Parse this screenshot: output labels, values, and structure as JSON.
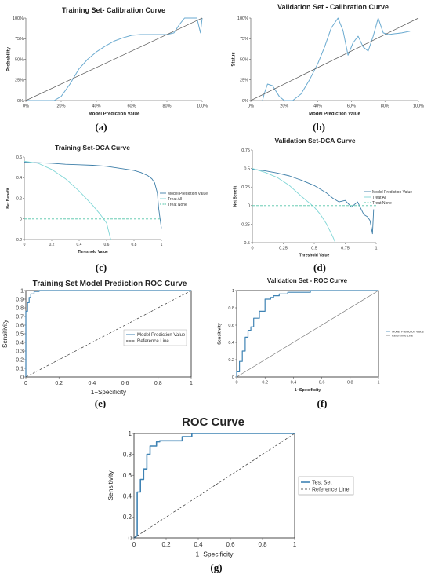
{
  "colors": {
    "model": "#6aaad0",
    "dark_model": "#3d7ea8",
    "treat_all": "#7fd6d6",
    "treat_none": "#52c4a8",
    "reference": "#555555",
    "roc": "#3f83b4",
    "outline": "#7a9fc4"
  },
  "chart_data": [
    {
      "id": "a",
      "type": "line",
      "caption": "(a)",
      "title": "Training Set- Calibration Curve",
      "xlabel": "Model Prediction Value",
      "ylabel": "Probability",
      "xlim": [
        0,
        1
      ],
      "ylim": [
        0,
        1
      ],
      "xticks": [
        "0%",
        "20%",
        "40%",
        "60%",
        "80%",
        "100%"
      ],
      "yticks": [
        "0%",
        "25%",
        "50%",
        "75%",
        "100%"
      ],
      "series": [
        {
          "role": "model",
          "x": [
            0.0,
            0.1,
            0.16,
            0.2,
            0.25,
            0.3,
            0.35,
            0.4,
            0.45,
            0.5,
            0.55,
            0.6,
            0.65,
            0.7,
            0.75,
            0.8,
            0.84,
            0.87,
            0.9,
            0.94,
            0.97,
            0.99,
            1.0
          ],
          "y": [
            0.0,
            0.0,
            0.0,
            0.05,
            0.2,
            0.38,
            0.5,
            0.59,
            0.66,
            0.72,
            0.76,
            0.79,
            0.8,
            0.8,
            0.8,
            0.8,
            0.82,
            0.92,
            1.0,
            1.0,
            1.0,
            0.82,
            1.0
          ]
        },
        {
          "role": "reference",
          "x": [
            0,
            1
          ],
          "y": [
            0,
            1
          ]
        }
      ]
    },
    {
      "id": "b",
      "type": "line",
      "caption": "(b)",
      "title": "Validation Set - Calibration Curve",
      "xlabel": "Model Prediction Value",
      "ylabel": "Status",
      "xlim": [
        0,
        1
      ],
      "ylim": [
        0,
        1
      ],
      "xticks": [
        "0%",
        "20%",
        "40%",
        "60%",
        "80%",
        "100%"
      ],
      "yticks": [
        "0%",
        "25%",
        "50%",
        "75%",
        "100%"
      ],
      "series": [
        {
          "role": "model",
          "x": [
            0.07,
            0.08,
            0.1,
            0.13,
            0.17,
            0.2,
            0.25,
            0.3,
            0.35,
            0.4,
            0.44,
            0.48,
            0.52,
            0.55,
            0.58,
            0.61,
            0.64,
            0.67,
            0.7,
            0.73,
            0.76,
            0.79,
            0.82,
            0.86,
            0.9,
            0.95
          ],
          "y": [
            0.0,
            0.08,
            0.2,
            0.18,
            0.05,
            0.0,
            0.0,
            0.08,
            0.25,
            0.45,
            0.65,
            0.88,
            1.0,
            0.85,
            0.55,
            0.7,
            0.78,
            0.65,
            0.6,
            0.78,
            1.0,
            0.82,
            0.8,
            0.81,
            0.82,
            0.84
          ]
        },
        {
          "role": "reference",
          "x": [
            0,
            1
          ],
          "y": [
            0,
            1
          ]
        }
      ]
    },
    {
      "id": "c",
      "type": "line",
      "caption": "(c)",
      "title": "Training Set-DCA Curve",
      "xlabel": "Threshold Value",
      "ylabel": "Net Benefit",
      "xlim": [
        0,
        1
      ],
      "ylim": [
        -0.2,
        0.6
      ],
      "xticks": [
        "0",
        "0.2",
        "0.4",
        "0.6",
        "0.8",
        "1"
      ],
      "xtick_values": [
        0,
        0.2,
        0.4,
        0.6,
        0.8,
        1
      ],
      "yticks": [
        "-0.2",
        "0",
        "0.2",
        "0.4",
        "0.6"
      ],
      "ytick_values": [
        -0.2,
        0,
        0.2,
        0.4,
        0.6
      ],
      "legend": [
        "Model Prediction Value",
        "Treat All",
        "Treat None"
      ],
      "series": [
        {
          "role": "model",
          "name": "Model Prediction Value",
          "x": [
            0.0,
            0.1,
            0.2,
            0.3,
            0.4,
            0.5,
            0.6,
            0.7,
            0.8,
            0.85,
            0.9,
            0.93,
            0.95,
            0.97,
            0.98,
            0.99,
            1.0
          ],
          "y": [
            0.55,
            0.545,
            0.54,
            0.53,
            0.525,
            0.52,
            0.51,
            0.49,
            0.47,
            0.45,
            0.42,
            0.39,
            0.35,
            0.25,
            0.1,
            0.0,
            -0.09
          ]
        },
        {
          "role": "treat_all",
          "name": "Treat All",
          "x": [
            0.0,
            0.1,
            0.2,
            0.3,
            0.4,
            0.5,
            0.55,
            0.6,
            0.63
          ],
          "y": [
            0.56,
            0.54,
            0.48,
            0.39,
            0.27,
            0.13,
            0.05,
            -0.04,
            -0.2
          ]
        },
        {
          "role": "treat_none",
          "name": "Treat None",
          "x": [
            0,
            1
          ],
          "y": [
            0,
            0
          ]
        }
      ]
    },
    {
      "id": "d",
      "type": "line",
      "caption": "(d)",
      "title": "Validation Set-DCA Curve",
      "xlabel": "Threshold Value",
      "ylabel": "Net Benefit",
      "xlim": [
        0,
        1
      ],
      "ylim": [
        -0.5,
        0.75
      ],
      "xticks": [
        "0",
        "0.25",
        "0.5",
        "0.75",
        "1"
      ],
      "xtick_values": [
        0,
        0.25,
        0.5,
        0.75,
        1
      ],
      "yticks": [
        "-0.5",
        "-0.25",
        "0",
        "0.25",
        "0.5",
        "0.75"
      ],
      "ytick_values": [
        -0.5,
        -0.25,
        0,
        0.25,
        0.5,
        0.75
      ],
      "legend": [
        "Model Prediction Value",
        "Treat All",
        "Treat None"
      ],
      "series": [
        {
          "role": "model",
          "name": "Model Prediction Value",
          "x": [
            0.0,
            0.1,
            0.2,
            0.3,
            0.4,
            0.5,
            0.55,
            0.6,
            0.65,
            0.7,
            0.75,
            0.8,
            0.85,
            0.9,
            0.93,
            0.95,
            0.97,
            0.98
          ],
          "y": [
            0.49,
            0.47,
            0.44,
            0.4,
            0.34,
            0.27,
            0.22,
            0.17,
            0.1,
            0.05,
            0.07,
            -0.02,
            0.05,
            -0.12,
            -0.15,
            -0.2,
            -0.38,
            -0.05
          ]
        },
        {
          "role": "treat_all",
          "name": "Treat All",
          "x": [
            0.0,
            0.1,
            0.2,
            0.3,
            0.4,
            0.5,
            0.55,
            0.6,
            0.65,
            0.67
          ],
          "y": [
            0.5,
            0.45,
            0.38,
            0.27,
            0.12,
            -0.02,
            -0.12,
            -0.25,
            -0.42,
            -0.5
          ]
        },
        {
          "role": "treat_none",
          "name": "Treat None",
          "x": [
            0,
            1
          ],
          "y": [
            0,
            0
          ]
        }
      ]
    },
    {
      "id": "e",
      "type": "line",
      "caption": "(e)",
      "title": "Training Set Model Prediction ROC Curve",
      "xlabel": "1−Specificity",
      "ylabel": "Sensitivity",
      "xlim": [
        0,
        1
      ],
      "ylim": [
        0,
        1
      ],
      "xticks": [
        "0",
        "0.2",
        "0.4",
        "0.6",
        "0.8",
        "1"
      ],
      "xtick_values": [
        0,
        0.2,
        0.4,
        0.6,
        0.8,
        1
      ],
      "yticks": [
        "0",
        "0.1",
        "0.2",
        "0.3",
        "0.4",
        "0.5",
        "0.6",
        "0.7",
        "0.8",
        "0.9",
        "1"
      ],
      "ytick_values": [
        0,
        0.1,
        0.2,
        0.3,
        0.4,
        0.5,
        0.6,
        0.7,
        0.8,
        0.9,
        1
      ],
      "legend": [
        "Model Prediction Value",
        "Reference Line"
      ],
      "series": [
        {
          "role": "roc",
          "name": "Model Prediction Value",
          "x": [
            0,
            0,
            0.01,
            0.01,
            0.02,
            0.02,
            0.03,
            0.03,
            0.05,
            0.05,
            0.08,
            0.08,
            1
          ],
          "y": [
            0,
            0.76,
            0.76,
            0.86,
            0.86,
            0.92,
            0.92,
            0.96,
            0.96,
            0.99,
            0.99,
            1,
            1
          ]
        },
        {
          "role": "reference",
          "name": "Reference Line",
          "x": [
            0,
            1
          ],
          "y": [
            0,
            1
          ]
        }
      ]
    },
    {
      "id": "f",
      "type": "line",
      "caption": "(f)",
      "title": "Validation Set - ROC Curve",
      "xlabel": "1−Specificity",
      "ylabel": "Sensitivity",
      "xlim": [
        0,
        1
      ],
      "ylim": [
        0,
        1
      ],
      "xticks": [
        "0",
        "0.2",
        "0.4",
        "0.6",
        "0.8",
        "1"
      ],
      "xtick_values": [
        0,
        0.2,
        0.4,
        0.6,
        0.8,
        1
      ],
      "yticks": [
        "0",
        "0.2",
        "0.4",
        "0.6",
        "0.8",
        "1"
      ],
      "ytick_values": [
        0,
        0.2,
        0.4,
        0.6,
        0.8,
        1
      ],
      "legend": [
        "Model Prediction Value",
        "Reference Line"
      ],
      "series": [
        {
          "role": "roc",
          "name": "Model Prediction Value",
          "x": [
            0,
            0,
            0.02,
            0.02,
            0.04,
            0.04,
            0.06,
            0.06,
            0.08,
            0.08,
            0.1,
            0.1,
            0.12,
            0.12,
            0.16,
            0.16,
            0.2,
            0.2,
            0.24,
            0.24,
            0.26,
            0.26,
            0.3,
            0.3,
            0.36,
            0.36,
            0.52,
            0.52,
            1
          ],
          "y": [
            0,
            0.06,
            0.06,
            0.18,
            0.18,
            0.3,
            0.3,
            0.46,
            0.46,
            0.54,
            0.54,
            0.58,
            0.58,
            0.68,
            0.68,
            0.76,
            0.76,
            0.9,
            0.9,
            0.92,
            0.92,
            0.94,
            0.94,
            0.96,
            0.96,
            0.98,
            0.98,
            1,
            1
          ]
        },
        {
          "role": "reference",
          "name": "Reference Line",
          "x": [
            0,
            1
          ],
          "y": [
            0,
            1
          ]
        }
      ]
    },
    {
      "id": "g",
      "type": "line",
      "caption": "(g)",
      "title": "ROC Curve",
      "xlabel": "1−Specificity",
      "ylabel": "Sensitivity",
      "xlim": [
        0,
        1
      ],
      "ylim": [
        0,
        1
      ],
      "xticks": [
        "0",
        "0.2",
        "0.4",
        "0.6",
        "0.8",
        "1"
      ],
      "xtick_values": [
        0,
        0.2,
        0.4,
        0.6,
        0.8,
        1
      ],
      "yticks": [
        "0",
        "0.2",
        "0.4",
        "0.6",
        "0.8",
        "1"
      ],
      "ytick_values": [
        0,
        0.2,
        0.4,
        0.6,
        0.8,
        1
      ],
      "legend": [
        "Test Set",
        "Reference Line"
      ],
      "series": [
        {
          "role": "roc",
          "name": "Test Set",
          "x": [
            0,
            0.02,
            0.02,
            0.04,
            0.04,
            0.06,
            0.06,
            0.08,
            0.08,
            0.1,
            0.1,
            0.14,
            0.14,
            0.16,
            0.16,
            0.3,
            0.3,
            0.36,
            0.36,
            0.98,
            1
          ],
          "y": [
            0,
            0.02,
            0.44,
            0.44,
            0.56,
            0.56,
            0.66,
            0.66,
            0.8,
            0.8,
            0.88,
            0.88,
            0.92,
            0.92,
            0.93,
            0.93,
            0.97,
            0.97,
            1,
            1,
            1
          ]
        },
        {
          "role": "reference",
          "name": "Reference Line",
          "x": [
            0,
            1
          ],
          "y": [
            0,
            1
          ]
        }
      ]
    }
  ]
}
